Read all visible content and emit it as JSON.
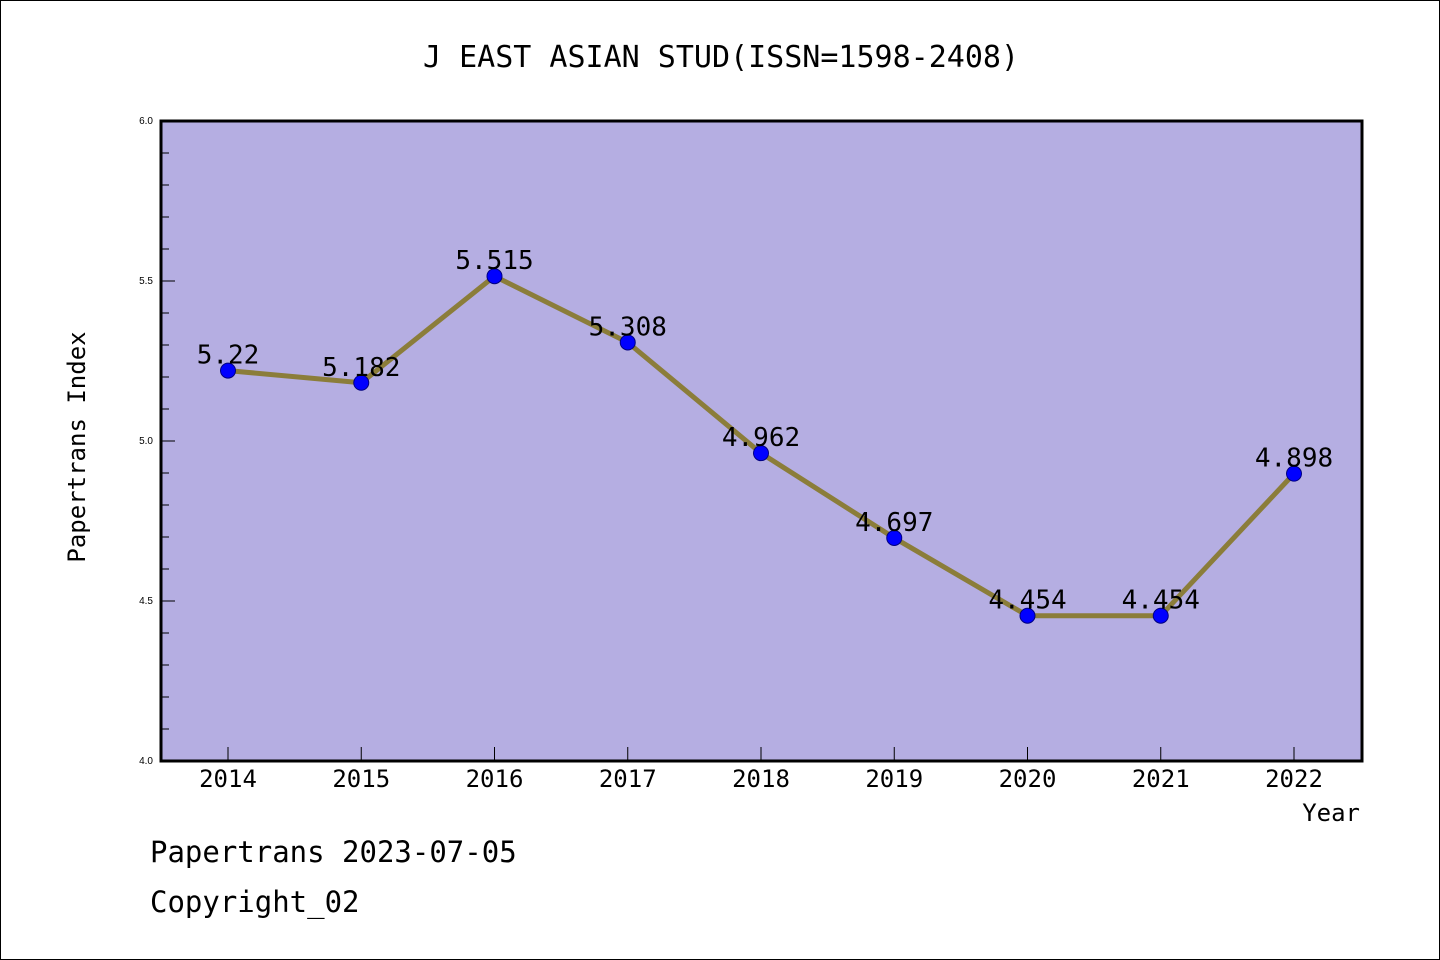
{
  "chart_data": {
    "type": "line",
    "title": "J EAST ASIAN STUD(ISSN=1598-2408)",
    "xlabel": "Year",
    "ylabel": "Papertrans Index",
    "categories": [
      "2014",
      "2015",
      "2016",
      "2017",
      "2018",
      "2019",
      "2020",
      "2021",
      "2022"
    ],
    "series": [
      {
        "values": [
          5.22,
          5.182,
          5.515,
          5.308,
          4.962,
          4.697,
          4.454,
          4.454,
          4.898
        ],
        "labels": [
          "5.22",
          "5.182",
          "5.515",
          "5.308",
          "4.962",
          "4.697",
          "4.454",
          "4.454",
          "4.898"
        ]
      }
    ],
    "ylim": [
      4.0,
      6.0
    ],
    "yticks": [
      "4.0",
      "4.5",
      "5.0",
      "5.5",
      "6.0"
    ],
    "grid": false,
    "colors": {
      "plot_background": "#b5aee2",
      "line": "#8b7d3a",
      "marker": "#0000ff",
      "marker_edge": "#000080"
    }
  },
  "footer": {
    "source": "Papertrans 2023-07-05",
    "copyright": "Copyright_02"
  }
}
